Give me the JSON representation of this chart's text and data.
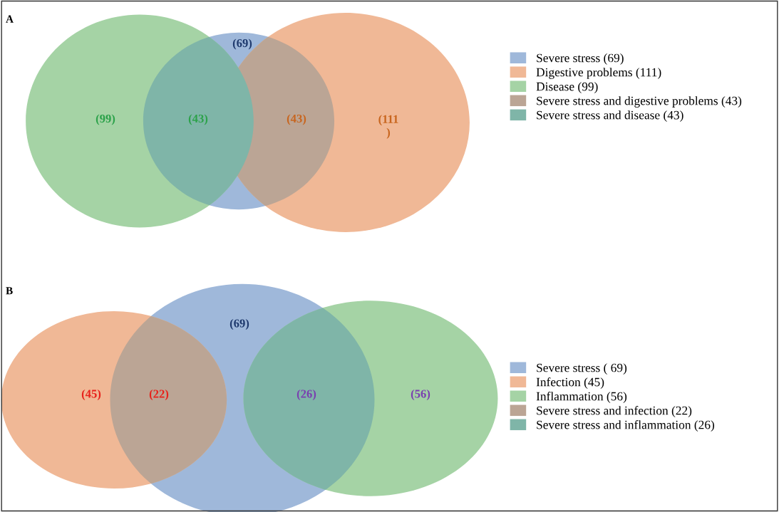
{
  "chart_data": [
    {
      "type": "other",
      "title": "A",
      "categories": [
        "Severe stress (69)",
        "Digestive problems (111)",
        "Disease (99)",
        "Severe stress and digestive problems (43)",
        "Severe stress and disease (43)"
      ],
      "values": [
        69,
        111,
        99,
        43,
        43
      ],
      "value_labels": [
        "(69)",
        "(111\n)",
        "(99)",
        "(43)",
        "(43)"
      ],
      "colors": [
        "#9fb8da",
        "#f0b896",
        "#a5d3a5",
        "#bba595",
        "#7fb5a8"
      ]
    },
    {
      "type": "other",
      "title": "B",
      "categories": [
        "Severe stress ( 69)",
        "Infection (45)",
        "Inflammation (56)",
        "Severe stress and infection (22)",
        "Severe stress and inflammation (26)"
      ],
      "values": [
        69,
        45,
        56,
        22,
        26
      ],
      "value_labels": [
        "(69)",
        "(45)",
        "(56)",
        "(22)",
        "(26)"
      ],
      "colors": [
        "#9fb8da",
        "#f0b896",
        "#a5d3a5",
        "#bba595",
        "#7fb5a8"
      ]
    }
  ]
}
